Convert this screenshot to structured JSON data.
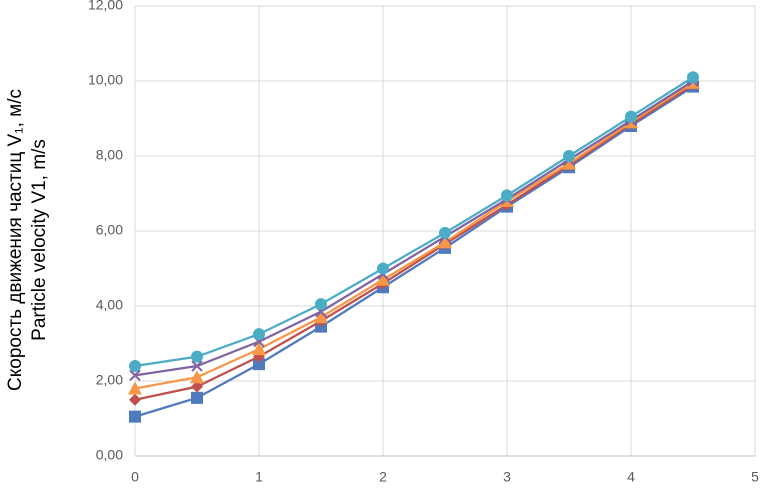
{
  "chart_data": {
    "type": "line",
    "y_label": [
      "Скорость движения частиц V₁, м/с",
      "Particle velocity V1, m/s"
    ],
    "x": [
      0,
      0.5,
      1,
      1.5,
      2,
      2.5,
      3,
      3.5,
      4,
      4.5
    ],
    "xlim": [
      0,
      5
    ],
    "xticks": [
      0,
      1,
      2,
      3,
      4,
      5
    ],
    "ylim": [
      0,
      12
    ],
    "yticks": [
      {
        "value": 0,
        "label": "0,00"
      },
      {
        "value": 2,
        "label": "2,00"
      },
      {
        "value": 4,
        "label": "4,00"
      },
      {
        "value": 6,
        "label": "6,00"
      },
      {
        "value": 8,
        "label": "8,00"
      },
      {
        "value": 10,
        "label": "10,00"
      },
      {
        "value": 12,
        "label": "12,00"
      }
    ],
    "grid": true,
    "series": [
      {
        "color": "#4f7bbd",
        "marker": "square",
        "values": [
          1.05,
          1.55,
          2.45,
          3.45,
          4.5,
          5.55,
          6.65,
          7.7,
          8.8,
          9.85
        ]
      },
      {
        "color": "#c0504d",
        "marker": "diamond",
        "values": [
          1.5,
          1.85,
          2.65,
          3.6,
          4.6,
          5.65,
          6.7,
          7.75,
          8.85,
          9.9
        ]
      },
      {
        "color": "#f79646",
        "marker": "triangle",
        "values": [
          1.8,
          2.1,
          2.85,
          3.7,
          4.7,
          5.7,
          6.8,
          7.8,
          8.9,
          9.95
        ]
      },
      {
        "color": "#8064a2",
        "marker": "cross",
        "values": [
          2.15,
          2.4,
          3.05,
          3.85,
          4.85,
          5.85,
          6.85,
          7.9,
          8.95,
          10.0
        ]
      },
      {
        "color": "#4bacc6",
        "marker": "circle",
        "values": [
          2.4,
          2.65,
          3.25,
          4.05,
          5.0,
          5.95,
          6.95,
          8.0,
          9.05,
          10.1
        ]
      }
    ]
  }
}
